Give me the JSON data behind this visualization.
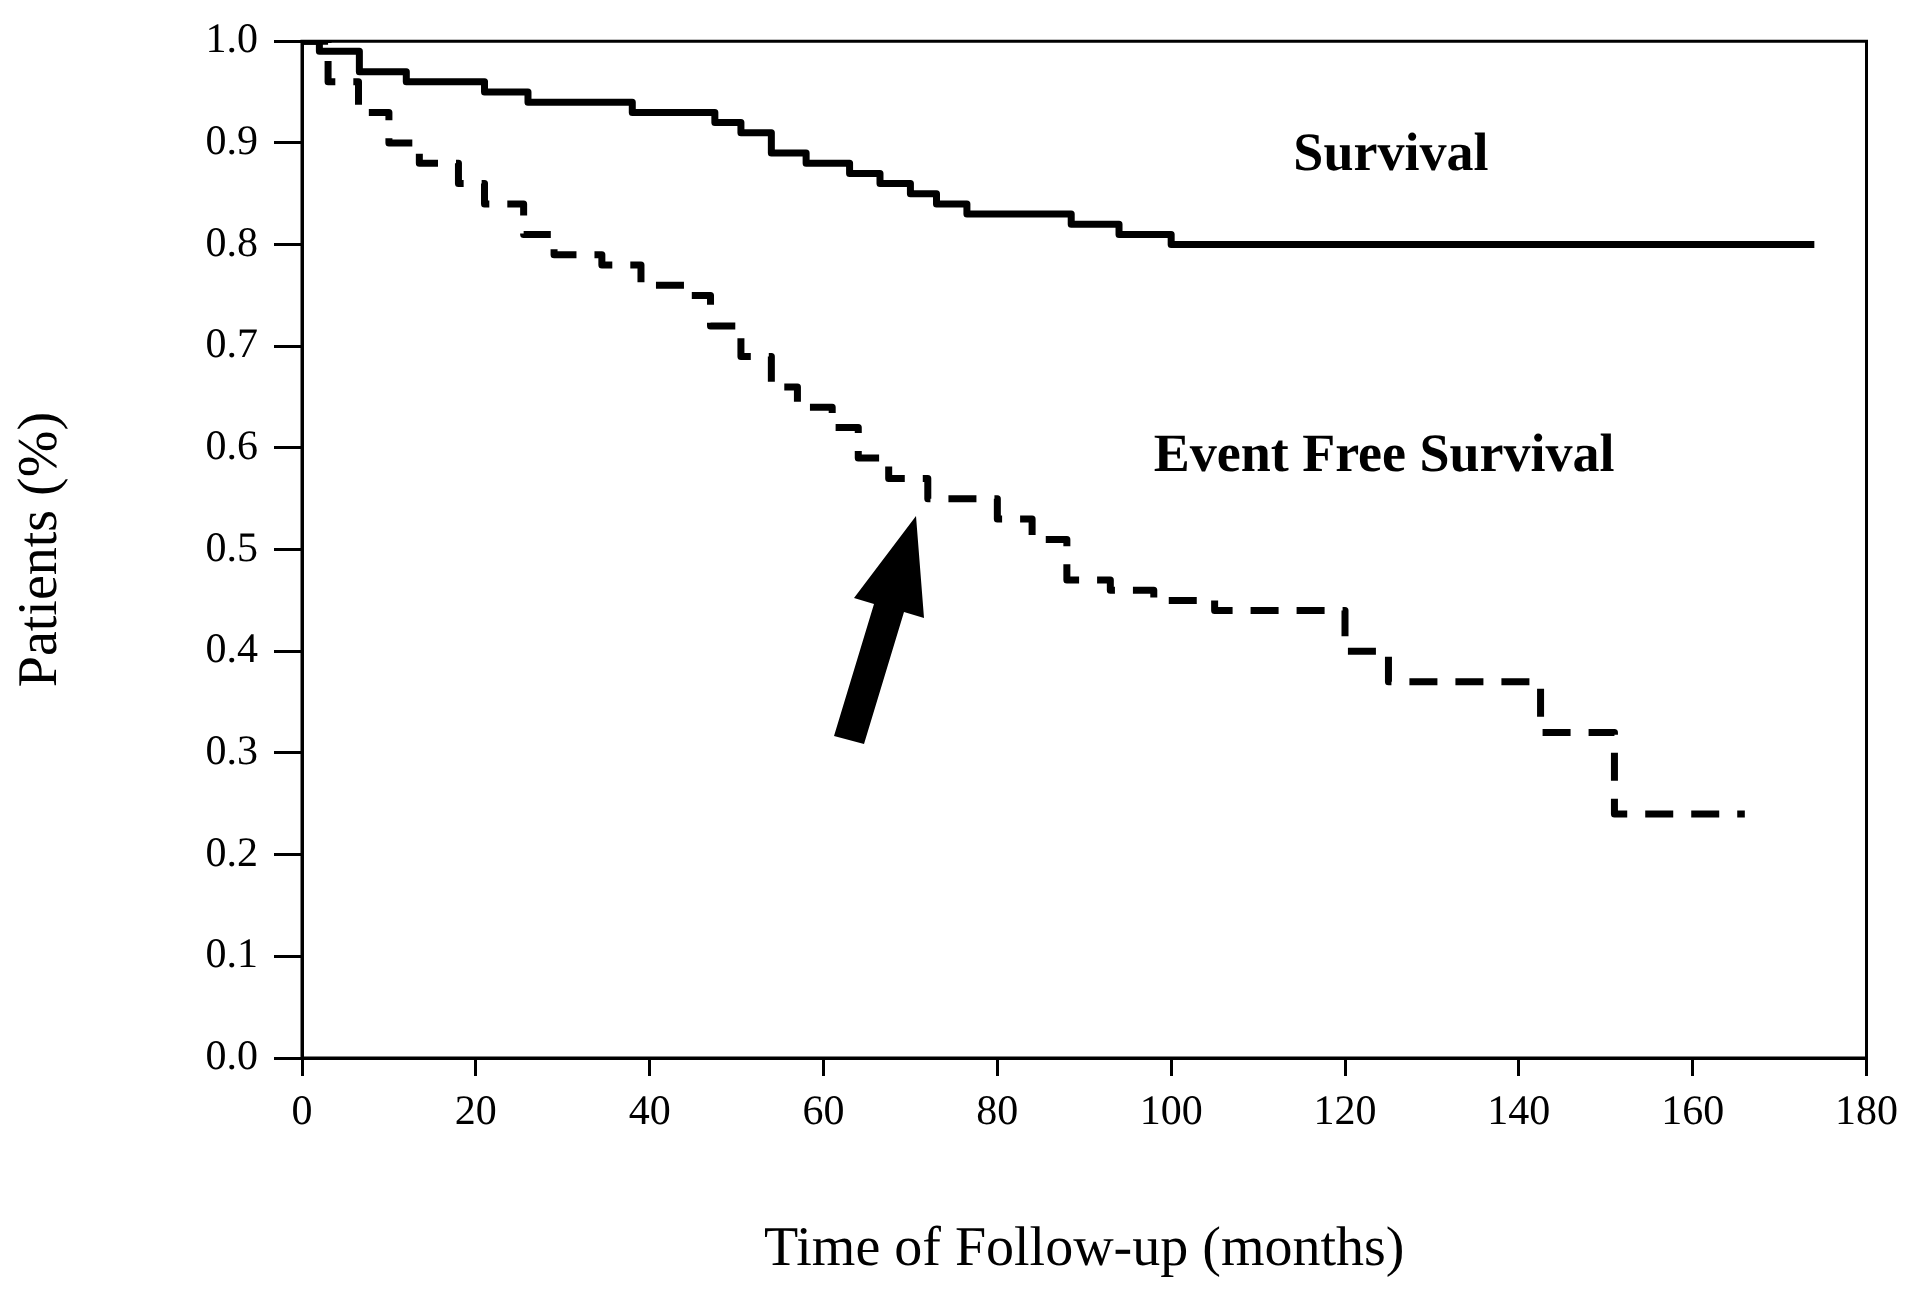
{
  "chart_data": {
    "type": "step",
    "xlabel": "Time of Follow-up (months)",
    "ylabel": "Patients (%)",
    "xlim": [
      0,
      180
    ],
    "xticks": [
      0,
      20,
      40,
      60,
      80,
      100,
      120,
      140,
      160,
      180
    ],
    "ylim": [
      0,
      1
    ],
    "yticks": [
      {
        "value": 0,
        "label": "0.0"
      },
      0.1,
      0.2,
      0.3,
      0.4,
      0.5,
      0.6,
      0.7,
      0.8,
      0.9,
      {
        "value": 1,
        "label": "1.0"
      }
    ],
    "grid": false,
    "legend": false,
    "marker": "none",
    "series": [
      {
        "name": "Survival",
        "color": "#000000",
        "line_style": "solid",
        "x": [
          0,
          2,
          6.6,
          12,
          17,
          21,
          26,
          31,
          38,
          47.5,
          50.5,
          54,
          58,
          63,
          66.5,
          70,
          73,
          76.5,
          81,
          88.5,
          94,
          100,
          174
        ],
        "values": [
          1,
          0.99,
          0.97,
          0.96,
          0.96,
          0.95,
          0.94,
          0.94,
          0.93,
          0.92,
          0.91,
          0.89,
          0.88,
          0.87,
          0.86,
          0.85,
          0.84,
          0.83,
          0.83,
          0.82,
          0.81,
          0.8,
          0.8
        ]
      },
      {
        "name": "Event Free Survival",
        "color": "#000000",
        "line_style": "dashed",
        "x": [
          0,
          3,
          6.5,
          10,
          13.5,
          18,
          21,
          25.5,
          29,
          34.5,
          39,
          44,
          47,
          50.5,
          54,
          57,
          61,
          64,
          67.5,
          72,
          77,
          80,
          84,
          88,
          93,
          98,
          105,
          113.5,
          120,
          125,
          142.5,
          151,
          166
        ],
        "values": [
          1,
          0.96,
          0.93,
          0.9,
          0.88,
          0.86,
          0.84,
          0.81,
          0.79,
          0.78,
          0.76,
          0.75,
          0.72,
          0.69,
          0.66,
          0.64,
          0.62,
          0.59,
          0.57,
          0.55,
          0.55,
          0.53,
          0.51,
          0.47,
          0.46,
          0.45,
          0.44,
          0.44,
          0.4,
          0.37,
          0.32,
          0.24,
          0.24
        ]
      }
    ]
  }
}
